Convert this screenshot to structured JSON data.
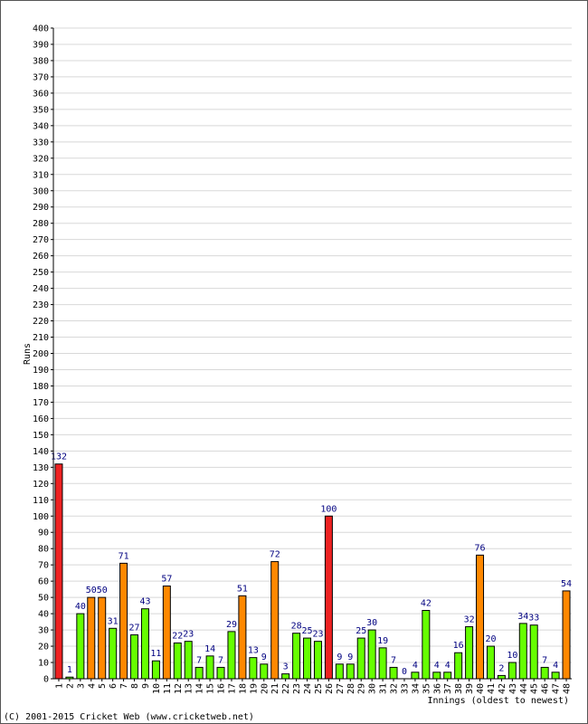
{
  "chart_data": {
    "type": "bar",
    "ylabel": "Runs",
    "xlabel": "Innings (oldest to newest)",
    "ylim": [
      0,
      400
    ],
    "ytick_step": 10,
    "grid": true,
    "categories": [
      "1",
      "2",
      "3",
      "4",
      "5",
      "6",
      "7",
      "8",
      "9",
      "10",
      "11",
      "12",
      "13",
      "14",
      "15",
      "16",
      "17",
      "18",
      "19",
      "20",
      "21",
      "22",
      "23",
      "24",
      "25",
      "26",
      "27",
      "28",
      "29",
      "30",
      "31",
      "32",
      "33",
      "34",
      "35",
      "36",
      "37",
      "38",
      "39",
      "40",
      "41",
      "42",
      "43",
      "44",
      "45",
      "46",
      "47",
      "48"
    ],
    "values": [
      132,
      1,
      40,
      50,
      50,
      31,
      71,
      27,
      43,
      11,
      57,
      22,
      23,
      7,
      14,
      7,
      29,
      51,
      13,
      9,
      72,
      3,
      28,
      25,
      23,
      100,
      9,
      9,
      25,
      30,
      19,
      7,
      0,
      4,
      42,
      4,
      4,
      16,
      32,
      76,
      20,
      2,
      10,
      34,
      33,
      7,
      4,
      54
    ],
    "colors": {
      "under_50": "#66ff00",
      "fifty_plus": "#ff8800",
      "hundred_plus": "#ee2222"
    }
  },
  "footer": "(C) 2001-2015 Cricket Web (www.cricketweb.net)"
}
